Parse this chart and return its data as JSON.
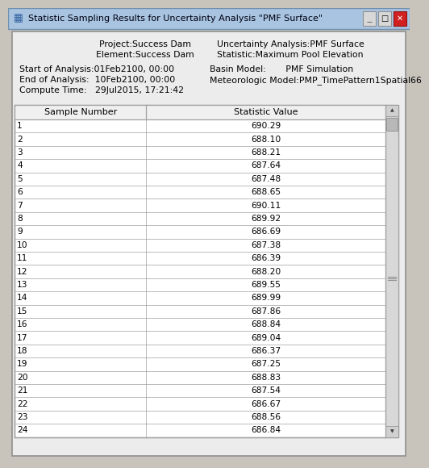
{
  "title": "Statistic Sampling Results for Uncertainty Analysis \"PMF Surface\"",
  "info_left_lines": [
    "Project:Success Dam",
    "Element:Success Dam"
  ],
  "info_left_lines2": [
    "Start of Analysis:01Feb2100, 00:00",
    "End of Analysis:  10Feb2100, 00:00",
    "Compute Time:   29Jul2015, 17:21:42"
  ],
  "info_right_lines": [
    "Uncertainty Analysis:PMF Surface",
    "Statistic:Maximum Pool Elevation"
  ],
  "info_right_lines2": [
    "Basin Model:       PMF Simulation",
    "Meteorologic Model:PMP_TimePattern1Spatial66"
  ],
  "col_headers": [
    "Sample Number",
    "Statistic Value"
  ],
  "sample_numbers": [
    1,
    2,
    3,
    4,
    5,
    6,
    7,
    8,
    9,
    10,
    11,
    12,
    13,
    14,
    15,
    16,
    17,
    18,
    19,
    20,
    21,
    22,
    23,
    24
  ],
  "statistic_values": [
    690.29,
    688.1,
    688.21,
    687.64,
    687.48,
    688.65,
    690.11,
    689.92,
    686.69,
    687.38,
    686.39,
    688.2,
    689.55,
    689.99,
    687.86,
    688.84,
    689.04,
    686.37,
    687.25,
    688.83,
    687.54,
    686.67,
    688.56,
    686.84
  ],
  "titlebar_bg": "#a8c4e0",
  "titlebar_text": "#000000",
  "window_bg": "#c8c4bc",
  "content_bg": "#ececec",
  "table_border": "#a0a0a0",
  "title_fontsize": 8.0,
  "info_fontsize": 7.8,
  "table_fontsize": 8.0
}
